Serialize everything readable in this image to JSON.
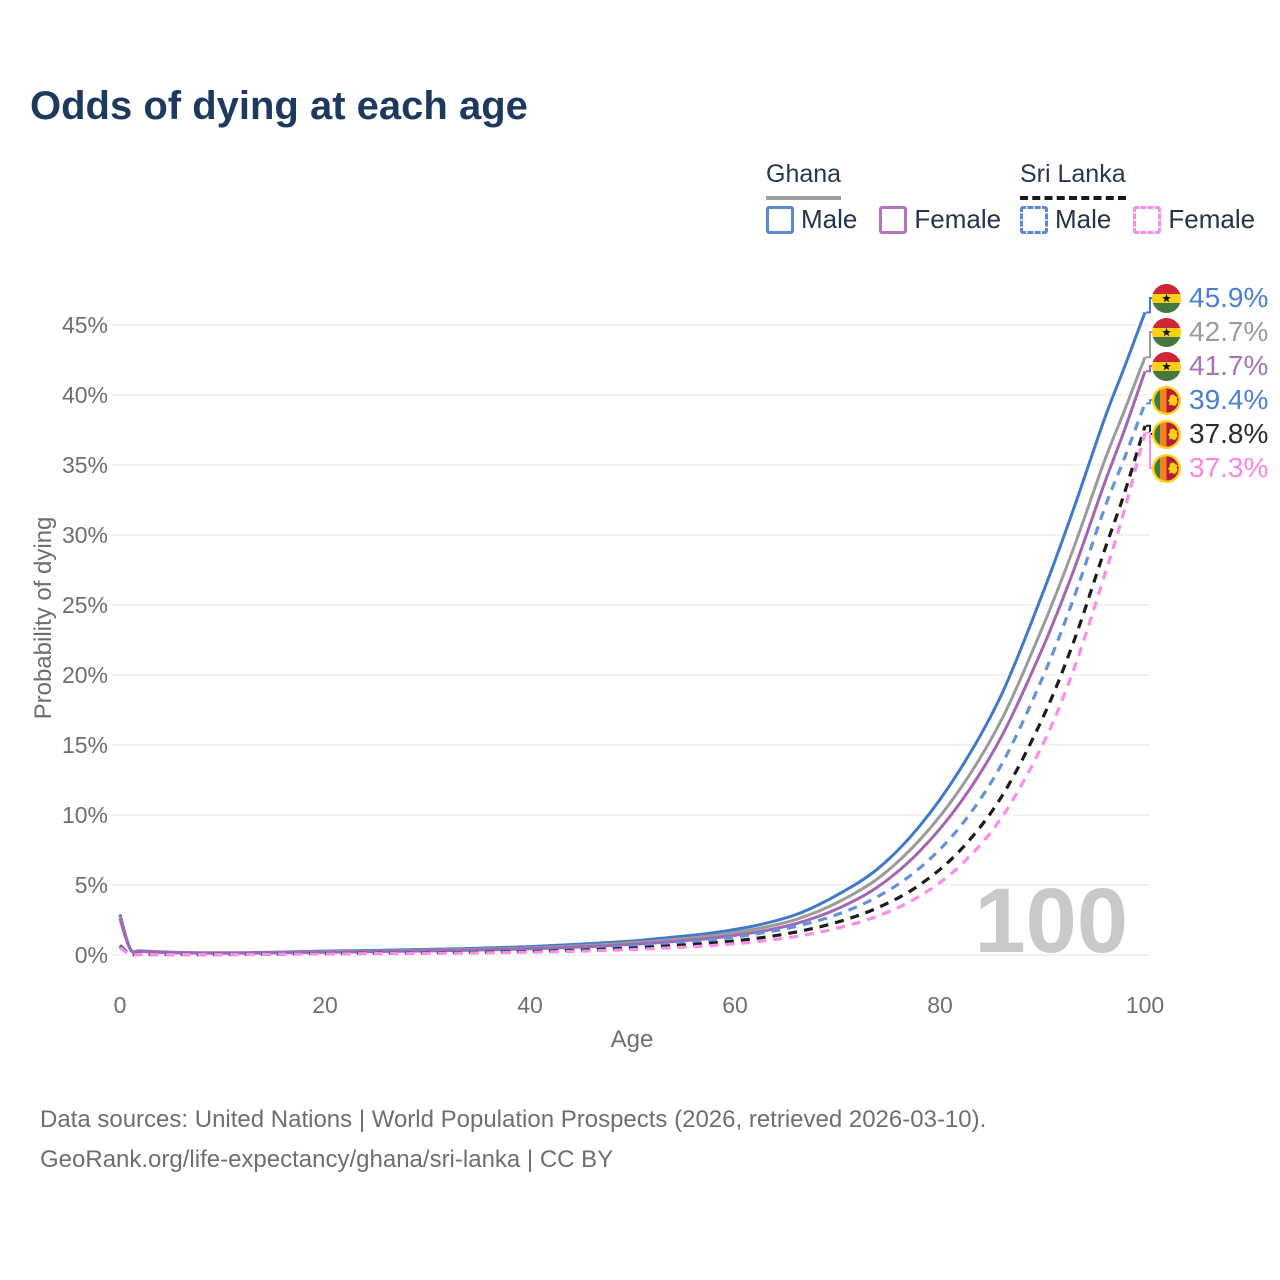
{
  "title": "Odds of dying at each age",
  "legend": {
    "ghana": {
      "label": "Ghana",
      "male": "Male",
      "female": "Female"
    },
    "sri_lanka": {
      "label": "Sri Lanka",
      "male": "Male",
      "female": "Female"
    }
  },
  "watermark": "100",
  "axis": {
    "x_label": "Age",
    "y_label": "Probability of dying"
  },
  "footer": {
    "line1": "Data sources: United Nations | World Population Prospects (2026, retrieved 2026-03-10).",
    "line2": "GeoRank.org/life-expectancy/ghana/sri-lanka | CC BY"
  },
  "colors": {
    "title_text": "#1d3a5e",
    "axis_text": "#6e6e6e",
    "gridline": "#ededef",
    "watermark": "#c9c9c9",
    "ghana_male": "#4079cb",
    "ghana_all": "#9b9b9b",
    "ghana_female": "#a466b0",
    "sri_lanka_male": "#6591dc",
    "sri_lanka_all": "#1c1c1c",
    "sri_lanka_female": "#fb8ce8"
  },
  "chart_data": {
    "type": "line",
    "title": "Odds of dying at each age",
    "xlabel": "Age",
    "ylabel": "Probability of dying",
    "xlim": [
      0,
      100
    ],
    "ylim": [
      0,
      46
    ],
    "x_ticks": [
      0,
      20,
      40,
      60,
      80,
      100
    ],
    "y_ticks": [
      0,
      5,
      10,
      15,
      20,
      25,
      30,
      35,
      40,
      45
    ],
    "y_tick_suffix": "%",
    "grid": "horizontal",
    "legend_position": "top-right",
    "x": [
      0,
      1,
      2,
      5,
      10,
      15,
      20,
      25,
      30,
      35,
      40,
      45,
      50,
      55,
      58,
      62,
      66,
      70,
      74,
      78,
      82,
      86,
      90,
      93,
      96,
      98,
      100
    ],
    "series": [
      {
        "id": "ghana-male",
        "name": "Ghana Male",
        "country": "Ghana",
        "sex": "Male",
        "color": "#4079cb",
        "label_color": "#4a80d4",
        "dashed": false,
        "flag": "ghana",
        "end_label": "45.9%",
        "end_value": 45.9,
        "values": [
          2.9,
          0.45,
          0.3,
          0.2,
          0.16,
          0.2,
          0.28,
          0.33,
          0.4,
          0.48,
          0.6,
          0.78,
          1.0,
          1.35,
          1.6,
          2.1,
          2.9,
          4.3,
          6.2,
          9.2,
          13.3,
          18.6,
          25.8,
          31.8,
          38.2,
          42.0,
          45.9
        ]
      },
      {
        "id": "ghana-all",
        "name": "Ghana All",
        "country": "Ghana",
        "sex": "All",
        "color": "#9b9b9b",
        "label_color": "#9b9b9b",
        "dashed": false,
        "flag": "ghana",
        "end_label": "42.7%",
        "end_value": 42.7,
        "values": [
          2.75,
          0.42,
          0.28,
          0.18,
          0.14,
          0.17,
          0.23,
          0.28,
          0.34,
          0.41,
          0.51,
          0.66,
          0.87,
          1.17,
          1.4,
          1.85,
          2.55,
          3.75,
          5.5,
          8.2,
          11.9,
          16.8,
          23.4,
          29.0,
          35.2,
          38.9,
          42.7
        ]
      },
      {
        "id": "ghana-female",
        "name": "Ghana Female",
        "country": "Ghana",
        "sex": "Female",
        "color": "#a466b0",
        "label_color": "#a871ba",
        "dashed": false,
        "flag": "ghana",
        "end_label": "41.7%",
        "end_value": 41.7,
        "values": [
          2.6,
          0.4,
          0.26,
          0.17,
          0.13,
          0.15,
          0.19,
          0.24,
          0.29,
          0.36,
          0.44,
          0.57,
          0.76,
          1.02,
          1.22,
          1.62,
          2.25,
          3.3,
          4.9,
          7.4,
          10.9,
          15.6,
          21.9,
          27.4,
          33.6,
          37.5,
          41.7
        ]
      },
      {
        "id": "sri-lanka-male",
        "name": "Sri Lanka Male",
        "country": "Sri Lanka",
        "sex": "Male",
        "color": "#6591dc",
        "label_color": "#4a80d4",
        "dashed": true,
        "flag": "sri-lanka",
        "end_label": "39.4%",
        "end_value": 39.4,
        "values": [
          0.7,
          0.06,
          0.05,
          0.04,
          0.04,
          0.08,
          0.14,
          0.17,
          0.2,
          0.25,
          0.33,
          0.45,
          0.63,
          0.9,
          1.1,
          1.5,
          2.05,
          2.9,
          4.2,
          6.2,
          9.2,
          13.6,
          19.8,
          25.4,
          31.8,
          35.5,
          39.4
        ]
      },
      {
        "id": "sri-lanka-all",
        "name": "Sri Lanka All",
        "country": "Sri Lanka",
        "sex": "All",
        "color": "#1c1c1c",
        "label_color": "#2b2b2b",
        "dashed": true,
        "flag": "sri-lanka",
        "end_label": "37.8%",
        "end_value": 37.8,
        "values": [
          0.62,
          0.05,
          0.04,
          0.035,
          0.035,
          0.06,
          0.1,
          0.12,
          0.15,
          0.19,
          0.25,
          0.35,
          0.49,
          0.71,
          0.87,
          1.18,
          1.65,
          2.35,
          3.4,
          5.0,
          7.5,
          11.3,
          16.9,
          22.3,
          28.8,
          33.0,
          37.8
        ]
      },
      {
        "id": "sri-lanka-female",
        "name": "Sri Lanka Female",
        "country": "Sri Lanka",
        "sex": "Female",
        "color": "#fb8ce8",
        "label_color": "#fb85e0",
        "dashed": true,
        "flag": "sri-lanka",
        "end_label": "37.3%",
        "end_value": 37.3,
        "values": [
          0.55,
          0.045,
          0.035,
          0.03,
          0.03,
          0.05,
          0.08,
          0.1,
          0.12,
          0.15,
          0.2,
          0.28,
          0.39,
          0.56,
          0.69,
          0.94,
          1.33,
          1.92,
          2.8,
          4.2,
          6.4,
          9.8,
          15.0,
          20.3,
          27.0,
          31.8,
          37.3
        ]
      }
    ]
  }
}
